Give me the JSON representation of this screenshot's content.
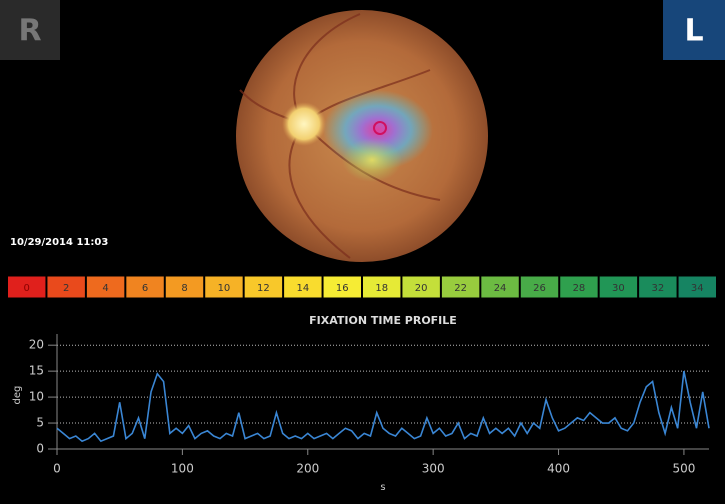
{
  "header": {
    "left_eye": "R",
    "right_eye": "L",
    "timestamp": "10/29/2014 11:03"
  },
  "scale": [
    {
      "label": 0,
      "color": "#e0201c"
    },
    {
      "label": 2,
      "color": "#e94a1c"
    },
    {
      "label": 4,
      "color": "#ee6a1e"
    },
    {
      "label": 6,
      "color": "#f08420"
    },
    {
      "label": 8,
      "color": "#f39a22"
    },
    {
      "label": 10,
      "color": "#f6b226"
    },
    {
      "label": 12,
      "color": "#f8c82a"
    },
    {
      "label": 14,
      "color": "#f9dc2e"
    },
    {
      "label": 16,
      "color": "#f6ec34"
    },
    {
      "label": 18,
      "color": "#e6ea36"
    },
    {
      "label": 20,
      "color": "#c4df3a"
    },
    {
      "label": 22,
      "color": "#98cc3e"
    },
    {
      "label": 24,
      "color": "#6cbb42"
    },
    {
      "label": 26,
      "color": "#48ab48"
    },
    {
      "label": 28,
      "color": "#2fa04e"
    },
    {
      "label": 30,
      "color": "#219656"
    },
    {
      "label": 32,
      "color": "#1a8c5c"
    },
    {
      "label": 34,
      "color": "#168462"
    }
  ],
  "chart_data": {
    "type": "line",
    "title": "FIXATION TIME PROFILE",
    "x_label": "s",
    "y_label": "deg",
    "x": [
      0,
      5,
      10,
      15,
      20,
      25,
      30,
      35,
      40,
      45,
      50,
      55,
      60,
      65,
      70,
      75,
      80,
      85,
      90,
      95,
      100,
      105,
      110,
      115,
      120,
      125,
      130,
      135,
      140,
      145,
      150,
      155,
      160,
      165,
      170,
      175,
      180,
      185,
      190,
      195,
      200,
      205,
      210,
      215,
      220,
      225,
      230,
      235,
      240,
      245,
      250,
      255,
      260,
      265,
      270,
      275,
      280,
      285,
      290,
      295,
      300,
      305,
      310,
      315,
      320,
      325,
      330,
      335,
      340,
      345,
      350,
      355,
      360,
      365,
      370,
      375,
      380,
      385,
      390,
      395,
      400,
      405,
      410,
      415,
      420,
      425,
      430,
      435,
      440,
      445,
      450,
      455,
      460,
      465,
      470,
      475,
      480,
      485,
      490,
      495,
      500,
      505,
      510,
      515,
      520
    ],
    "series": [
      {
        "name": "deg",
        "color": "#3a86d4",
        "values": [
          4,
          3,
          2,
          2.5,
          1.5,
          2,
          3,
          1.5,
          2,
          2.5,
          9,
          2,
          3,
          6,
          2,
          11,
          14.5,
          13,
          3,
          4,
          3,
          4.5,
          2,
          3,
          3.5,
          2.5,
          2,
          3,
          2.5,
          7,
          2,
          2.5,
          3,
          2,
          2.5,
          7,
          3,
          2,
          2.5,
          2,
          3,
          2,
          2.5,
          3,
          2,
          3,
          4,
          3.5,
          2,
          3,
          2.5,
          7,
          4,
          3,
          2.5,
          4,
          3,
          2,
          2.5,
          6,
          3,
          4,
          2.5,
          3,
          5,
          2,
          3,
          2.5,
          6,
          3,
          4,
          3,
          4,
          2.5,
          5,
          3,
          5,
          4,
          9.5,
          6,
          3.5,
          4,
          5,
          6,
          5.5,
          7,
          6,
          5,
          5,
          6,
          4,
          3.5,
          5,
          9,
          12,
          13,
          7,
          3,
          8,
          4,
          15,
          9,
          4,
          11,
          4
        ]
      }
    ],
    "xlim": [
      0,
      520
    ],
    "ylim": [
      0,
      21
    ],
    "xticks": [
      0,
      100,
      200,
      300,
      400,
      500
    ],
    "yticks": [
      0,
      5,
      10,
      15,
      20
    ],
    "grid": true
  }
}
